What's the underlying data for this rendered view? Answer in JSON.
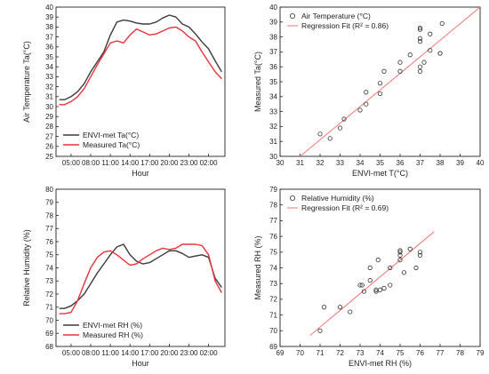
{
  "chart_data": [
    {
      "type": "line",
      "panel": "top-left",
      "ylabel": "Air Temperature Ta(°C)",
      "xlabel": "Hour",
      "x_tick_labels": [
        "05:00",
        "08:00",
        "11:00",
        "14:00",
        "17:00",
        "20:00",
        "23:00",
        "02:00"
      ],
      "x_tick_pos": [
        4.5,
        7.5,
        10.5,
        13.5,
        16.5,
        19.5,
        22.5,
        25.5
      ],
      "xlim": [
        2.2,
        28.0
      ],
      "ylim": [
        25,
        40
      ],
      "y_ticks": [
        25,
        26,
        27,
        28,
        29,
        30,
        31,
        32,
        33,
        34,
        35,
        36,
        37,
        38,
        39,
        40
      ],
      "legend_position": "bottom-left",
      "x": [
        2.7,
        3.5,
        4.5,
        5.5,
        6.5,
        7.5,
        8.5,
        9.5,
        10.5,
        11.5,
        12.5,
        13.5,
        14.5,
        15.5,
        16.5,
        17.5,
        18.5,
        19.5,
        20.5,
        21.5,
        22.5,
        23.5,
        24.5,
        25.5,
        26.5,
        27.5
      ],
      "series": [
        {
          "name": "ENVI-met Ta(°C)",
          "color": "#3a3a3a",
          "values": [
            30.7,
            30.7,
            31.0,
            31.5,
            32.3,
            33.5,
            34.5,
            35.5,
            37.2,
            38.5,
            38.7,
            38.6,
            38.4,
            38.3,
            38.3,
            38.5,
            38.9,
            39.2,
            39.0,
            38.3,
            38.0,
            37.3,
            36.5,
            35.8,
            34.6,
            33.5
          ]
        },
        {
          "name": "Measured Ta(°C)",
          "color": "#e8323c",
          "values": [
            30.2,
            30.2,
            30.5,
            31.0,
            31.8,
            33.0,
            34.2,
            35.3,
            36.4,
            36.6,
            36.4,
            37.2,
            37.8,
            37.5,
            37.2,
            37.3,
            37.6,
            37.9,
            38.0,
            37.6,
            37.0,
            36.6,
            35.5,
            34.5,
            33.5,
            32.8
          ]
        }
      ]
    },
    {
      "type": "scatter",
      "panel": "top-right",
      "xlabel": "ENVI-met T(°C)",
      "ylabel": "Measured Ta(°C)",
      "xlim": [
        30,
        40
      ],
      "ylim": [
        30,
        40
      ],
      "x_ticks": [
        30,
        31,
        32,
        33,
        34,
        35,
        36,
        37,
        38,
        39,
        40
      ],
      "y_ticks": [
        30,
        31,
        32,
        33,
        34,
        35,
        36,
        37,
        38,
        39,
        40
      ],
      "legend_position": "top-left",
      "series": [
        {
          "name": "Air Temperature (°C)",
          "points": [
            [
              32.0,
              31.5
            ],
            [
              32.5,
              31.2
            ],
            [
              33.0,
              31.9
            ],
            [
              33.2,
              32.5
            ],
            [
              34.0,
              33.1
            ],
            [
              34.3,
              33.5
            ],
            [
              34.3,
              34.3
            ],
            [
              35.0,
              34.2
            ],
            [
              35.0,
              34.9
            ],
            [
              35.2,
              35.7
            ],
            [
              36.0,
              35.7
            ],
            [
              36.0,
              36.3
            ],
            [
              37.0,
              35.7
            ],
            [
              37.0,
              36.0
            ],
            [
              37.2,
              36.3
            ],
            [
              36.5,
              36.8
            ],
            [
              37.0,
              37.7
            ],
            [
              37.0,
              37.9
            ],
            [
              37.0,
              38.5
            ],
            [
              37.0,
              38.6
            ],
            [
              37.5,
              37.1
            ],
            [
              37.5,
              38.2
            ],
            [
              38.0,
              36.9
            ],
            [
              38.0,
              36.9
            ],
            [
              38.1,
              38.9
            ]
          ]
        },
        {
          "name": "Regression Fit (R² = 0.86)",
          "line": [
            [
              31.0,
              30.0
            ],
            [
              40.0,
              40.0
            ]
          ],
          "color": "#f08080"
        }
      ]
    },
    {
      "type": "line",
      "panel": "bottom-left",
      "ylabel": "Relative Humidity (%)",
      "xlabel": "Hour",
      "x_tick_labels": [
        "05:00",
        "08:00",
        "11:00",
        "14:00",
        "17:00",
        "20:00",
        "23:00",
        "02:00"
      ],
      "x_tick_pos": [
        4.5,
        7.5,
        10.5,
        13.5,
        16.5,
        19.5,
        22.5,
        25.5
      ],
      "xlim": [
        2.2,
        28.0
      ],
      "ylim": [
        68,
        80
      ],
      "y_ticks": [
        68,
        69,
        70,
        71,
        72,
        73,
        74,
        75,
        76,
        77,
        78,
        79,
        80
      ],
      "legend_position": "bottom-left",
      "x": [
        2.7,
        3.5,
        4.5,
        5.5,
        6.5,
        7.5,
        8.5,
        9.5,
        10.5,
        11.5,
        12.5,
        13.5,
        14.5,
        15.5,
        16.5,
        17.5,
        18.5,
        19.5,
        20.5,
        21.5,
        22.5,
        23.5,
        24.5,
        25.5,
        26.5,
        27.5
      ],
      "series": [
        {
          "name": "ENVI-met RH (%)",
          "color": "#3a3a3a",
          "values": [
            70.9,
            70.9,
            71.1,
            71.5,
            72.0,
            72.8,
            73.6,
            74.3,
            75.0,
            75.6,
            75.8,
            75.0,
            74.5,
            74.3,
            74.4,
            74.7,
            75.0,
            75.3,
            75.3,
            75.1,
            74.8,
            74.9,
            75.0,
            74.8,
            73.2,
            72.5
          ]
        },
        {
          "name": "Measured RH (%)",
          "color": "#e8323c",
          "values": [
            70.5,
            70.5,
            70.6,
            71.5,
            72.8,
            74.0,
            74.8,
            75.2,
            75.3,
            75.0,
            74.6,
            74.2,
            74.3,
            74.7,
            75.0,
            75.3,
            75.5,
            75.4,
            75.5,
            75.8,
            75.8,
            75.8,
            75.7,
            75.0,
            73.0,
            72.1
          ]
        }
      ]
    },
    {
      "type": "scatter",
      "panel": "bottom-right",
      "xlabel": "ENVI-met RH (%)",
      "ylabel": "Measured RH (%)",
      "xlim": [
        69,
        79
      ],
      "ylim": [
        69,
        79
      ],
      "x_ticks": [
        69,
        70,
        71,
        72,
        73,
        74,
        75,
        76,
        77,
        78,
        79
      ],
      "y_ticks": [
        69,
        70,
        71,
        72,
        73,
        74,
        75,
        76,
        77,
        78,
        79
      ],
      "legend_position": "top-left",
      "series": [
        {
          "name": "Relative Humidity (%)",
          "points": [
            [
              71.0,
              70.0
            ],
            [
              71.2,
              71.5
            ],
            [
              72.0,
              71.5
            ],
            [
              72.5,
              71.2
            ],
            [
              73.0,
              72.9
            ],
            [
              73.1,
              72.9
            ],
            [
              73.2,
              72.5
            ],
            [
              73.5,
              73.2
            ],
            [
              73.5,
              74.0
            ],
            [
              73.8,
              72.5
            ],
            [
              73.8,
              72.6
            ],
            [
              74.0,
              72.6
            ],
            [
              73.9,
              74.5
            ],
            [
              74.2,
              72.7
            ],
            [
              74.5,
              72.9
            ],
            [
              74.5,
              74.0
            ],
            [
              75.0,
              74.5
            ],
            [
              75.0,
              74.8
            ],
            [
              75.0,
              75.0
            ],
            [
              75.0,
              75.1
            ],
            [
              75.2,
              73.7
            ],
            [
              75.5,
              75.2
            ],
            [
              75.8,
              74.0
            ],
            [
              76.0,
              74.8
            ],
            [
              76.0,
              75.0
            ]
          ]
        },
        {
          "name": "Regression Fit (R² = 0.69)",
          "line": [
            [
              70.5,
              69.7
            ],
            [
              76.7,
              76.3
            ]
          ],
          "color": "#f08080"
        }
      ]
    }
  ]
}
